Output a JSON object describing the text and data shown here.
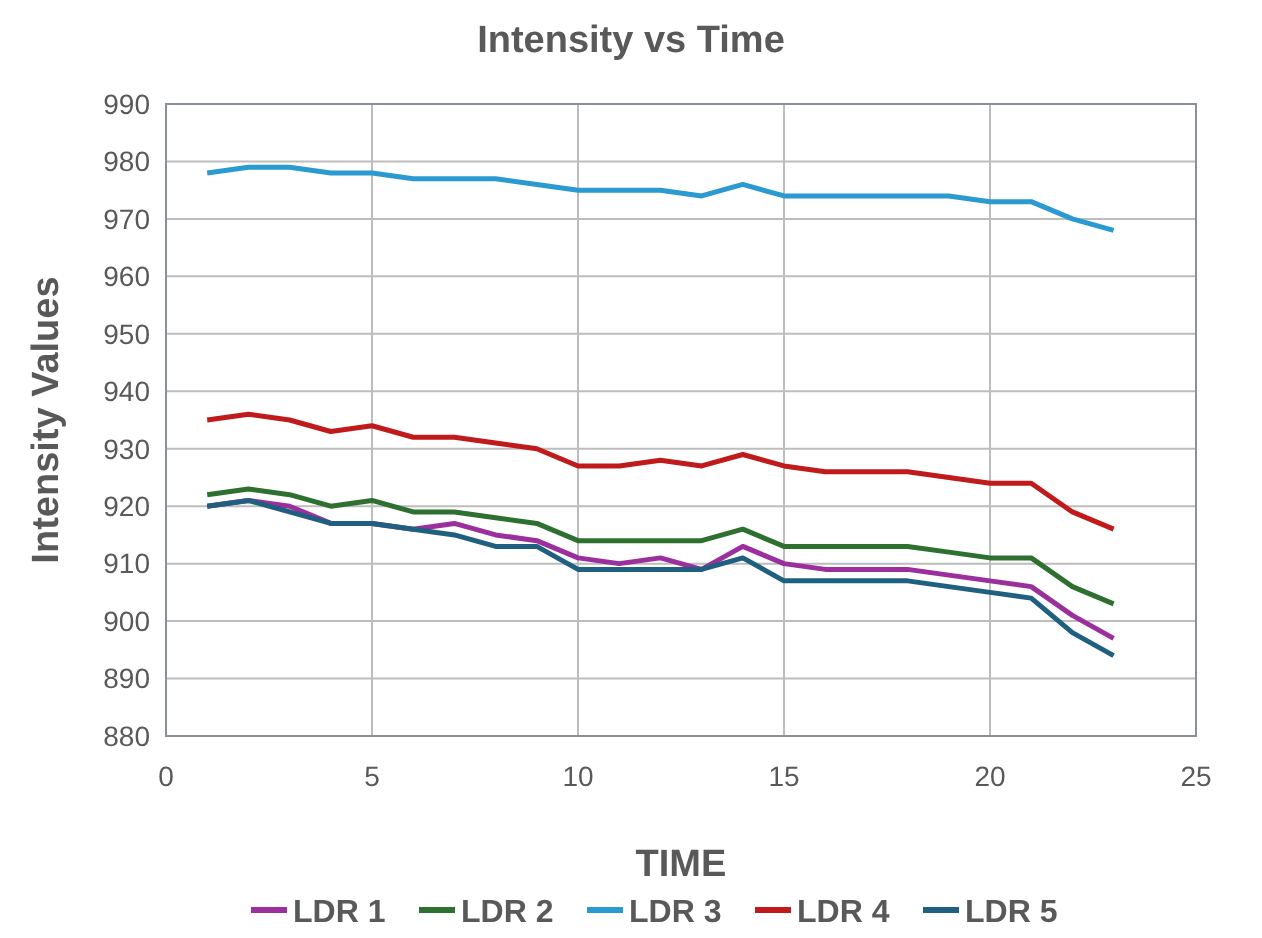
{
  "chart_data": {
    "type": "line",
    "title": "Intensity vs Time",
    "xlabel": "TIME",
    "ylabel": "Intensity Values",
    "x": [
      1,
      2,
      3,
      4,
      5,
      6,
      7,
      8,
      9,
      10,
      11,
      12,
      13,
      14,
      15,
      16,
      17,
      18,
      19,
      20,
      21,
      22,
      23
    ],
    "xlim": [
      0,
      25
    ],
    "xticks": [
      0,
      5,
      10,
      15,
      20,
      25
    ],
    "ylim": [
      880,
      990
    ],
    "yticks": [
      880,
      890,
      900,
      910,
      920,
      930,
      940,
      950,
      960,
      970,
      980,
      990
    ],
    "grid": true,
    "legend": "bottom",
    "marker": "none",
    "line_style": "solid",
    "series": [
      {
        "name": "LDR 1",
        "color": "#9b2f9e",
        "values": [
          920,
          921,
          920,
          917,
          917,
          916,
          917,
          915,
          914,
          911,
          910,
          911,
          909,
          913,
          910,
          909,
          909,
          909,
          908,
          907,
          906,
          901,
          897
        ]
      },
      {
        "name": "LDR 2",
        "color": "#2e7030",
        "values": [
          922,
          923,
          922,
          920,
          921,
          919,
          919,
          918,
          917,
          914,
          914,
          914,
          914,
          916,
          913,
          913,
          913,
          913,
          912,
          911,
          911,
          906,
          903
        ]
      },
      {
        "name": "LDR 3",
        "color": "#2a9ad0",
        "values": [
          978,
          979,
          979,
          978,
          978,
          977,
          977,
          977,
          976,
          975,
          975,
          975,
          974,
          976,
          974,
          974,
          974,
          974,
          974,
          973,
          973,
          970,
          968
        ]
      },
      {
        "name": "LDR 4",
        "color": "#c01a1a",
        "values": [
          935,
          936,
          935,
          933,
          934,
          932,
          932,
          931,
          930,
          927,
          927,
          928,
          927,
          929,
          927,
          926,
          926,
          926,
          925,
          924,
          924,
          919,
          916
        ]
      },
      {
        "name": "LDR 5",
        "color": "#1f5f80",
        "values": [
          920,
          921,
          919,
          917,
          917,
          916,
          915,
          913,
          913,
          909,
          909,
          909,
          909,
          911,
          907,
          907,
          907,
          907,
          906,
          905,
          904,
          898,
          894
        ]
      }
    ]
  }
}
